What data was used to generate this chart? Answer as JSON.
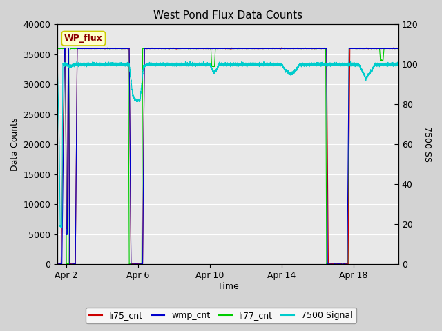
{
  "title": "West Pond Flux Data Counts",
  "xlabel": "Time",
  "ylabel_left": "Data Counts",
  "ylabel_right": "7500 SS",
  "ylim_left": [
    0,
    40000
  ],
  "ylim_right": [
    0,
    120
  ],
  "yticks_left": [
    0,
    5000,
    10000,
    15000,
    20000,
    25000,
    30000,
    35000,
    40000
  ],
  "yticks_right": [
    0,
    20,
    40,
    60,
    80,
    100,
    120
  ],
  "fig_bg": "#d3d3d3",
  "plot_bg": "#e8e8e8",
  "wp_flux_bg": "#ffffcc",
  "wp_flux_edge": "#cccc00",
  "wp_flux_text": "#8b0000",
  "colors": {
    "li75_cnt": "#cc0000",
    "wmp_cnt": "#0000cc",
    "li77_cnt": "#00cc00",
    "signal_7500": "#00cccc"
  },
  "x_ticks_labels": [
    "Apr 2",
    "Apr 6",
    "Apr 10",
    "Apr 14",
    "Apr 18"
  ],
  "x_ticks_pos": [
    1,
    5,
    9,
    13,
    17
  ],
  "xlim": [
    0.5,
    19.5
  ],
  "legend_labels": [
    "li75_cnt",
    "wmp_cnt",
    "li77_cnt",
    "7500 Signal"
  ]
}
